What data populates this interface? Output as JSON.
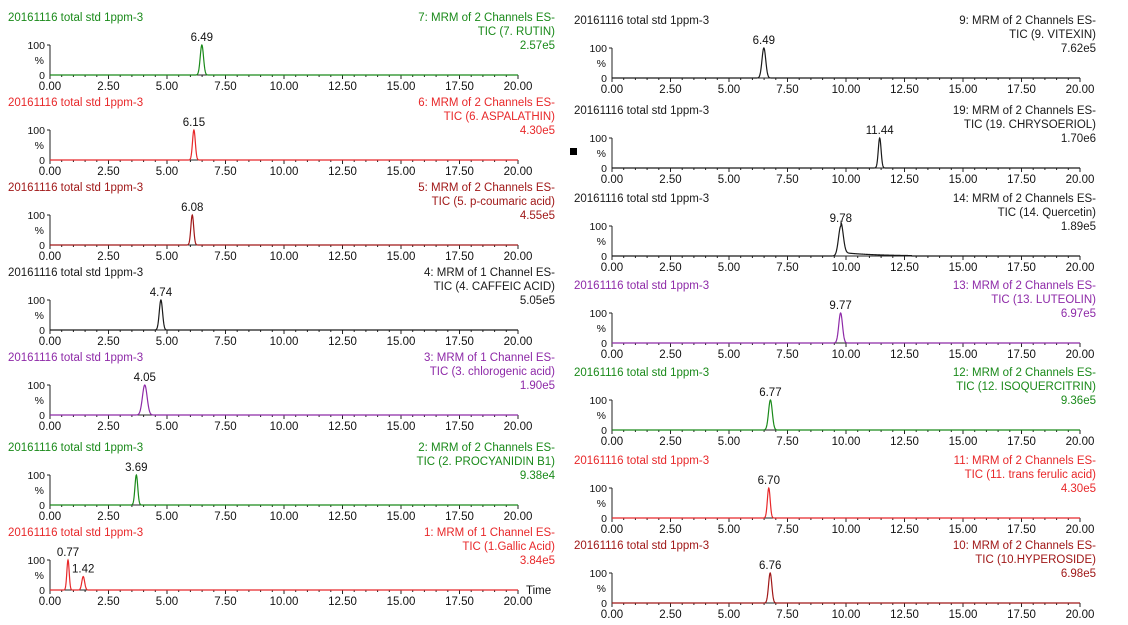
{
  "shared": {
    "sample_label": "20161116 total std  1ppm-3",
    "y_max_label": "100",
    "y_unit_label": "%",
    "y_min_label": "0",
    "x_ticks": [
      0,
      2.5,
      5,
      7.5,
      10,
      12.5,
      15,
      17.5,
      20
    ],
    "x_tick_labels": [
      "0.00",
      "2.50",
      "5.00",
      "7.50",
      "10.00",
      "12.50",
      "15.00",
      "17.50",
      "20.00"
    ],
    "xlim": [
      0,
      20
    ],
    "ylim": [
      0,
      100
    ],
    "time_label": "Time"
  },
  "chart_data": [
    {
      "type": "line",
      "compound": "rutin",
      "color": "#1a8a1a",
      "line1": "7: MRM of 2 Channels ES-",
      "line2": "TIC (7. RUTIN)",
      "intensity": "2.57e5",
      "peaks": [
        {
          "rt": 6.49,
          "label": "6.49",
          "height": 100,
          "width": 0.07
        }
      ]
    },
    {
      "type": "line",
      "compound": "aspalathin",
      "color": "#e8282a",
      "line1": "6: MRM of 2 Channels ES-",
      "line2": "TIC (6. ASPALATHIN)",
      "intensity": "4.30e5",
      "peaks": [
        {
          "rt": 6.15,
          "label": "6.15",
          "height": 100,
          "width": 0.06
        }
      ]
    },
    {
      "type": "line",
      "compound": "p-coumaric-acid",
      "color": "#a01818",
      "line1": "5: MRM of 2 Channels ES-",
      "line2": "TIC (5. p-coumaric acid)",
      "intensity": "4.55e5",
      "peaks": [
        {
          "rt": 6.08,
          "label": "6.08",
          "height": 100,
          "width": 0.06
        }
      ]
    },
    {
      "type": "line",
      "compound": "caffeic-acid",
      "color": "#1a1a1a",
      "line1": "4: MRM of 1 Channel ES-",
      "line2": "TIC (4. CAFFEIC ACID)",
      "intensity": "5.05e5",
      "peaks": [
        {
          "rt": 4.74,
          "label": "4.74",
          "height": 100,
          "width": 0.07
        }
      ]
    },
    {
      "type": "line",
      "compound": "chlorogenic-acid",
      "color": "#8e2aa8",
      "line1": "3: MRM of 1 Channel ES-",
      "line2": "TIC (3. chlorogenic acid)",
      "intensity": "1.90e5",
      "peaks": [
        {
          "rt": 4.05,
          "label": "4.05",
          "height": 100,
          "width": 0.1
        }
      ]
    },
    {
      "type": "line",
      "compound": "procyanidin-b1",
      "color": "#1a8a1a",
      "line1": "2: MRM of 2 Channels ES-",
      "line2": "TIC (2. PROCYANIDIN B1)",
      "intensity": "9.38e4",
      "peaks": [
        {
          "rt": 3.69,
          "label": "3.69",
          "height": 100,
          "width": 0.06
        }
      ]
    },
    {
      "type": "line",
      "compound": "gallic-acid",
      "color": "#e8282a",
      "line1": "1: MRM of 1 Channel ES-",
      "line2": "TIC (1.Gallic Acid)",
      "intensity": "3.84e5",
      "peaks": [
        {
          "rt": 0.77,
          "label": "0.77",
          "height": 100,
          "width": 0.05
        },
        {
          "rt": 1.42,
          "label": "1.42",
          "height": 45,
          "width": 0.06
        }
      ]
    },
    {
      "type": "line",
      "compound": "vitexin",
      "color": "#1a1a1a",
      "line1": "9: MRM of 2 Channels ES-",
      "line2": "TIC (9. VITEXIN)",
      "intensity": "7.62e5",
      "peaks": [
        {
          "rt": 6.49,
          "label": "6.49",
          "height": 100,
          "width": 0.08
        }
      ]
    },
    {
      "type": "line",
      "compound": "chrysoeriol",
      "color": "#1a1a1a",
      "line1": "19: MRM of 2 Channels ES-",
      "line2": "TIC (19. CHRYSOERIOL)",
      "intensity": "1.70e6",
      "peaks": [
        {
          "rt": 11.44,
          "label": "11.44",
          "height": 100,
          "width": 0.06
        }
      ]
    },
    {
      "type": "line",
      "compound": "quercetin",
      "color": "#1a1a1a",
      "line1": "14: MRM of 2 Channels ES-",
      "line2": "TIC (14. Quercetin)",
      "intensity": "1.89e5",
      "peaks": [
        {
          "rt": 9.78,
          "label": "9.78",
          "height": 100,
          "width": 0.1,
          "tail": true
        }
      ]
    },
    {
      "type": "line",
      "compound": "luteolin",
      "color": "#8e2aa8",
      "line1": "13: MRM of 2 Channels ES-",
      "line2": "TIC (13. LUTEOLIN)",
      "intensity": "6.97e5",
      "peaks": [
        {
          "rt": 9.77,
          "label": "9.77",
          "height": 100,
          "width": 0.08
        }
      ]
    },
    {
      "type": "line",
      "compound": "isoquercitrin",
      "color": "#1a8a1a",
      "line1": "12: MRM of 2 Channels ES-",
      "line2": "TIC (12. ISOQUERCITRIN)",
      "intensity": "9.36e5",
      "peaks": [
        {
          "rt": 6.77,
          "label": "6.77",
          "height": 100,
          "width": 0.08
        }
      ]
    },
    {
      "type": "line",
      "compound": "trans-ferulic-acid",
      "color": "#e8282a",
      "line1": "11: MRM of 2 Channels ES-",
      "line2": "TIC (11. trans ferulic acid)",
      "intensity": "4.30e5",
      "peaks": [
        {
          "rt": 6.7,
          "label": "6.70",
          "height": 100,
          "width": 0.06
        }
      ]
    },
    {
      "type": "line",
      "compound": "hyperoside",
      "color": "#a01818",
      "line1": "10: MRM of 2 Channels ES-",
      "line2": "TIC (10.HYPEROSIDE)",
      "intensity": "6.98e5",
      "peaks": [
        {
          "rt": 6.76,
          "label": "6.76",
          "height": 100,
          "width": 0.07
        }
      ]
    }
  ]
}
